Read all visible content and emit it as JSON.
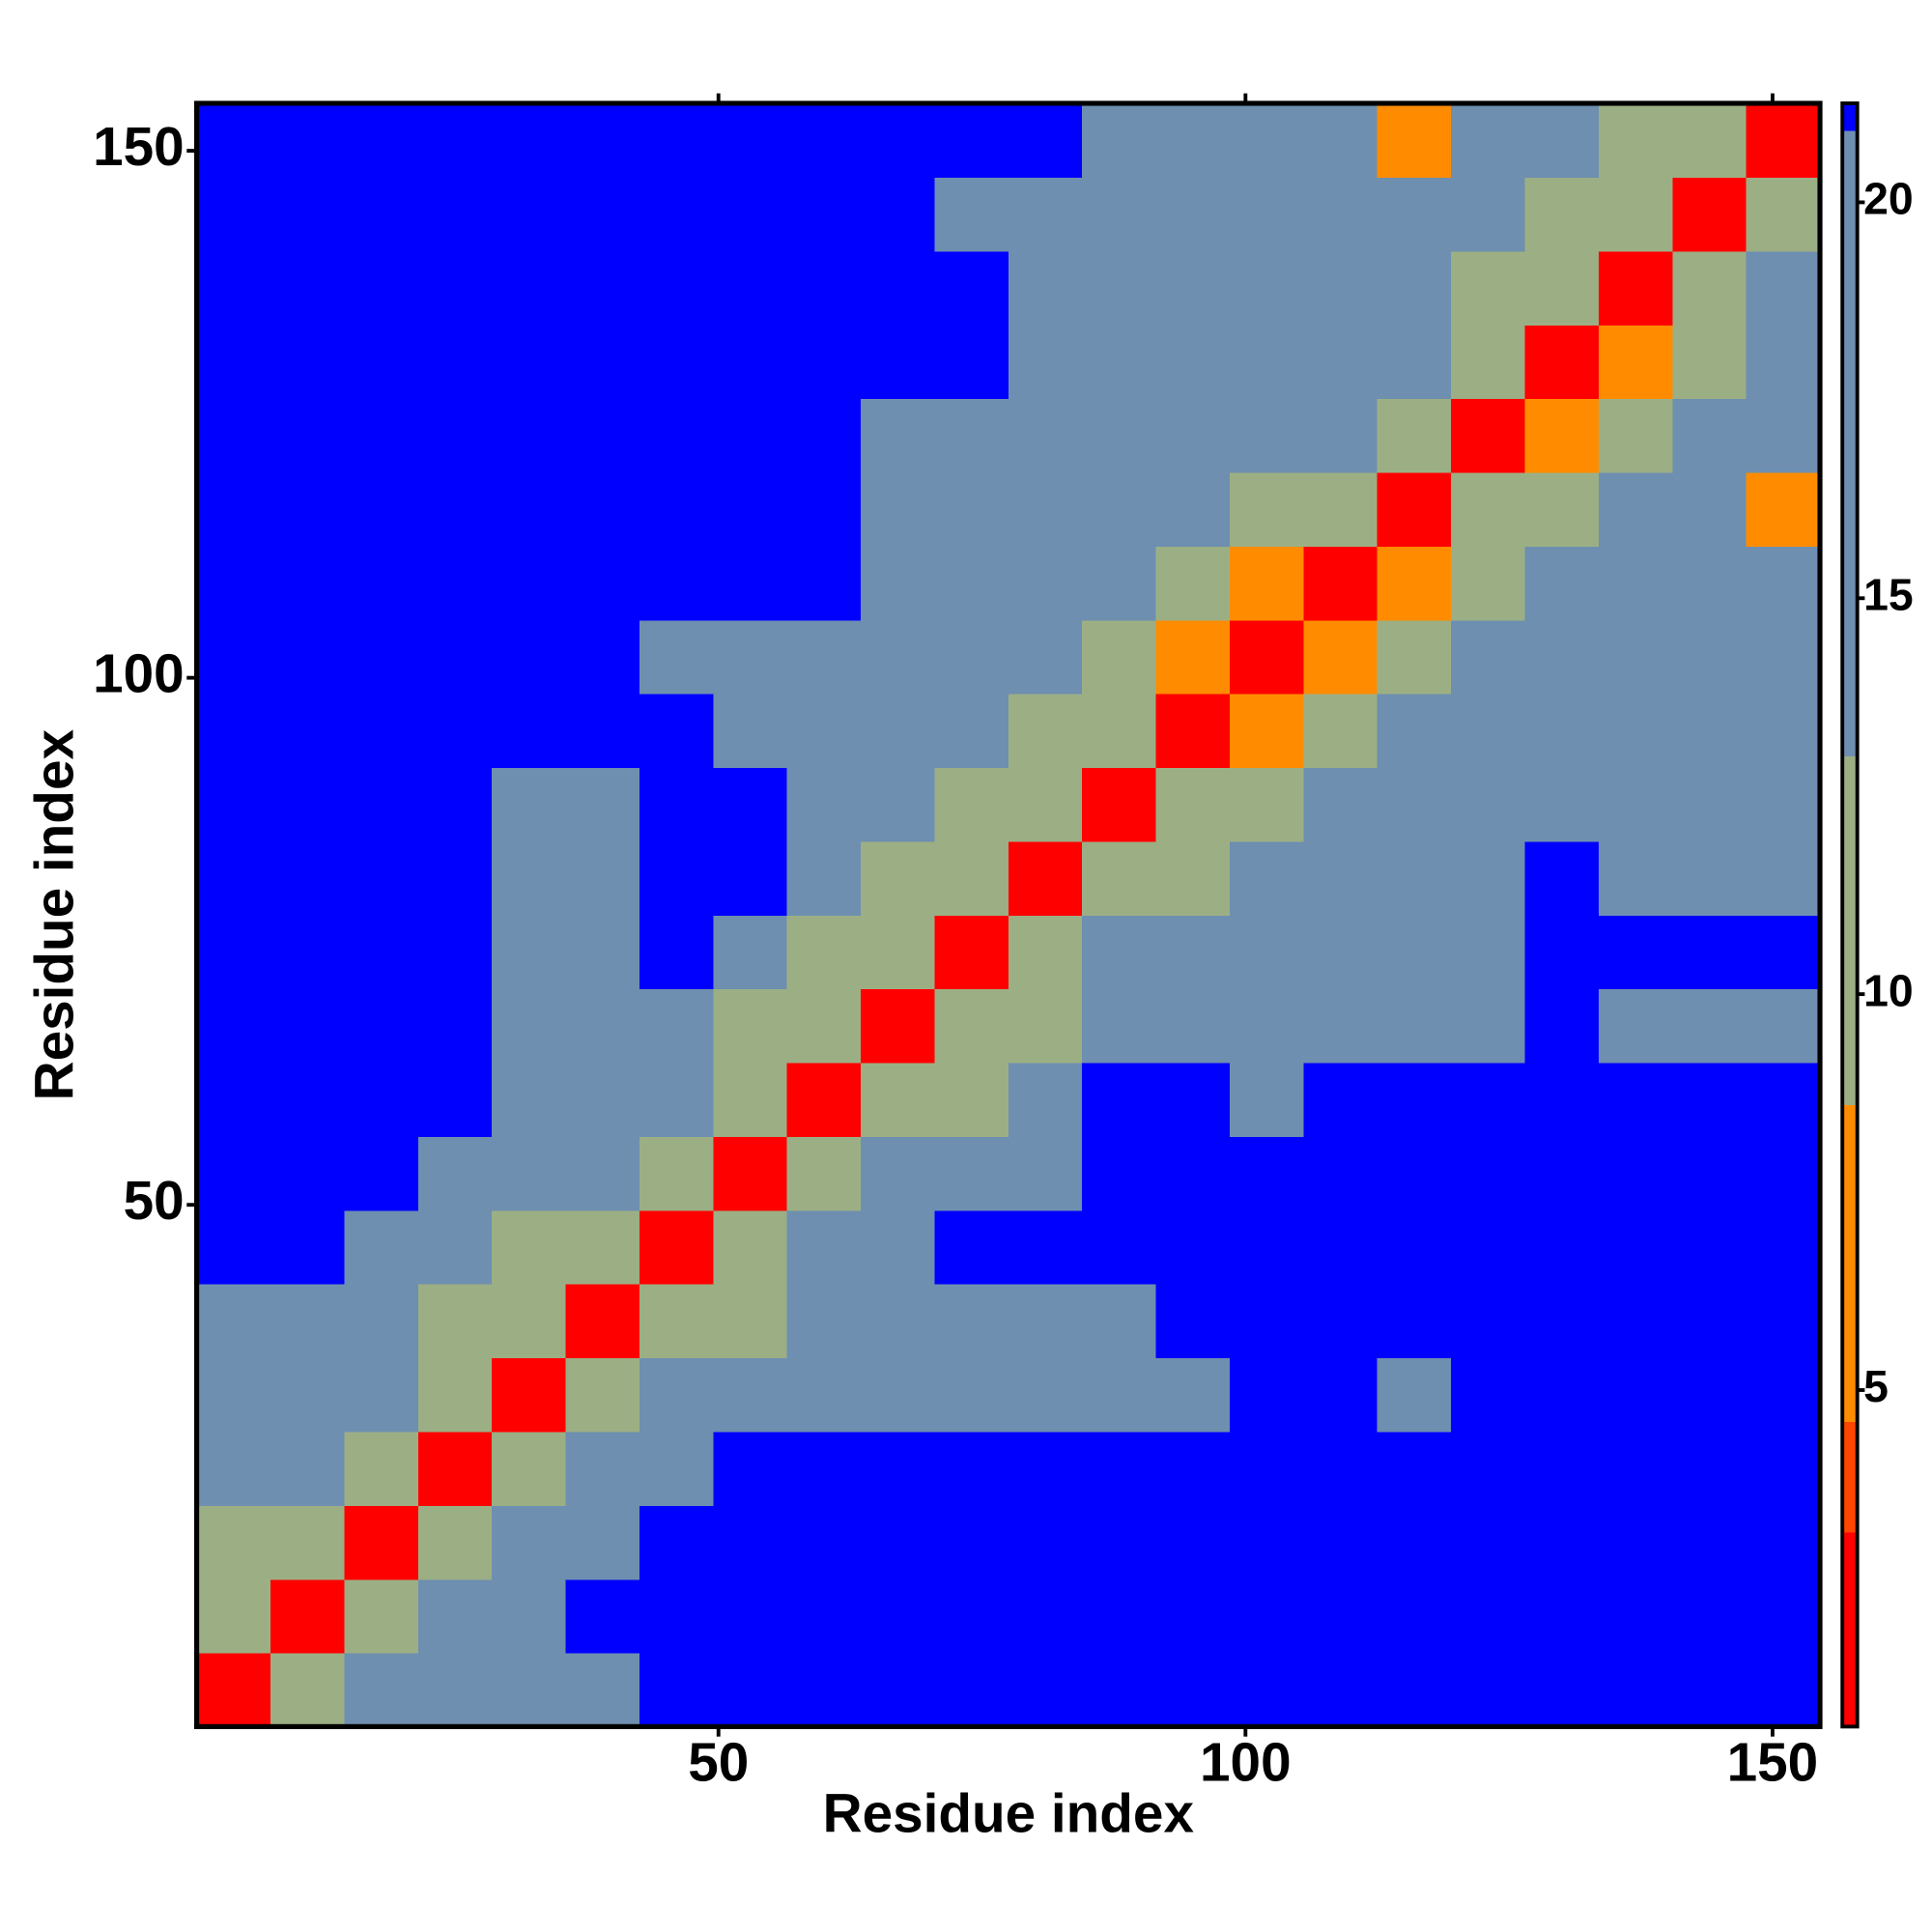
{
  "chart_data": {
    "type": "heatmap",
    "x_label": "Residue index",
    "y_label": "Residue index",
    "xlim": [
      0.5,
      154.5
    ],
    "ylim": [
      0.5,
      154.5
    ],
    "xticks": [
      50,
      100,
      150
    ],
    "yticks": [
      50,
      100,
      150
    ],
    "x_edges": [
      0.5,
      7.5,
      14.5,
      21.5,
      28.5,
      35.5,
      42.5,
      49.5,
      56.5,
      63.5,
      70.5,
      77.5,
      84.5,
      91.5,
      98.5,
      105.5,
      112.5,
      119.5,
      126.5,
      133.5,
      140.5,
      147.5,
      154.5
    ],
    "y_edges": [
      0.5,
      7.5,
      14.5,
      21.5,
      28.5,
      35.5,
      42.5,
      49.5,
      56.5,
      63.5,
      70.5,
      77.5,
      84.5,
      91.5,
      98.5,
      105.5,
      112.5,
      119.5,
      126.5,
      133.5,
      140.5,
      147.5,
      154.5
    ],
    "values": [
      [
        3,
        10,
        14,
        18,
        19,
        20,
        21,
        21,
        21,
        21,
        21,
        21,
        21,
        21,
        21,
        21,
        21,
        21,
        21,
        21,
        21,
        21
      ],
      [
        10,
        3,
        10,
        14,
        18,
        21,
        21,
        21,
        21,
        21,
        21,
        21,
        21,
        21,
        21,
        21,
        21,
        21,
        21,
        21,
        21,
        21
      ],
      [
        12,
        10,
        3,
        10,
        14,
        18,
        21,
        21,
        21,
        21,
        21,
        21,
        21,
        21,
        21,
        21,
        21,
        21,
        21,
        21,
        21,
        21
      ],
      [
        14,
        14,
        10,
        3,
        10,
        14,
        19,
        21,
        21,
        21,
        21,
        21,
        21,
        21,
        21,
        21,
        21,
        21,
        21,
        21,
        21,
        21
      ],
      [
        16,
        17,
        14,
        10,
        3,
        9,
        14,
        17,
        19,
        17,
        17,
        18,
        18,
        19,
        21,
        21,
        20,
        21,
        21,
        21,
        21,
        21
      ],
      [
        18,
        16,
        16,
        13,
        9,
        3,
        9,
        13,
        17,
        17,
        17,
        18,
        18,
        21,
        21,
        21,
        21,
        21,
        21,
        21,
        21,
        21
      ],
      [
        21,
        21,
        19,
        17,
        13,
        9,
        3,
        10,
        14,
        19,
        21,
        21,
        21,
        21,
        21,
        21,
        21,
        21,
        21,
        21,
        21,
        21
      ],
      [
        21,
        21,
        21,
        20,
        15,
        14,
        10,
        3,
        10,
        14,
        17,
        20,
        21,
        21,
        21,
        21,
        21,
        21,
        21,
        21,
        21,
        21
      ],
      [
        21,
        21,
        21,
        21,
        17,
        17,
        14,
        10,
        3,
        9,
        13,
        18,
        21,
        21,
        20,
        21,
        21,
        21,
        21,
        21,
        21,
        21
      ],
      [
        21,
        21,
        21,
        21,
        17,
        18,
        17,
        13,
        9,
        3,
        9,
        13,
        16,
        18,
        17,
        17,
        18,
        18,
        21,
        19,
        19,
        19
      ],
      [
        21,
        21,
        21,
        21,
        16,
        17,
        21,
        17,
        13,
        9,
        3,
        9,
        14,
        16,
        17,
        18,
        18,
        19,
        21,
        21,
        21,
        21
      ],
      [
        21,
        21,
        21,
        21,
        18,
        19,
        21,
        21,
        16,
        13,
        9,
        3,
        9,
        13,
        16,
        17,
        19,
        18,
        21,
        18,
        19,
        18
      ],
      [
        21,
        21,
        21,
        21,
        19,
        19,
        21,
        21,
        18,
        14,
        13,
        9,
        3,
        9,
        12,
        15,
        17,
        17,
        18,
        17,
        19,
        19
      ],
      [
        21,
        21,
        21,
        21,
        21,
        21,
        21,
        20,
        17,
        17,
        15,
        13,
        9,
        3,
        8,
        12,
        15,
        16,
        17,
        17,
        17,
        16
      ],
      [
        21,
        21,
        21,
        21,
        21,
        21,
        20,
        19,
        18,
        17,
        17,
        16,
        12,
        8,
        3,
        8,
        12,
        15,
        17,
        16,
        16,
        16
      ],
      [
        21,
        21,
        21,
        21,
        21,
        21,
        21,
        21,
        21,
        18,
        17,
        17,
        15,
        12,
        8,
        3,
        8,
        12,
        16,
        17,
        18,
        18
      ],
      [
        21,
        21,
        21,
        21,
        21,
        21,
        21,
        21,
        21,
        18,
        17,
        18,
        17,
        15,
        13,
        9,
        3,
        9,
        12,
        15,
        14,
        7
      ],
      [
        21,
        21,
        21,
        21,
        21,
        21,
        21,
        21,
        21,
        19,
        17,
        17,
        18,
        16,
        15,
        14,
        9,
        3,
        8,
        12,
        15,
        16
      ],
      [
        21,
        21,
        21,
        21,
        21,
        21,
        21,
        21,
        21,
        21,
        21,
        19,
        17,
        16,
        17,
        16,
        14,
        10,
        3,
        8,
        13,
        17
      ],
      [
        21,
        21,
        21,
        21,
        21,
        21,
        21,
        21,
        21,
        21,
        21,
        18,
        16,
        15,
        16,
        16,
        15,
        13,
        9,
        3,
        9,
        14
      ],
      [
        21,
        21,
        21,
        21,
        21,
        21,
        21,
        21,
        21,
        21,
        20,
        19,
        18,
        18,
        17,
        18,
        16,
        15,
        12,
        9,
        3,
        9
      ],
      [
        21,
        21,
        21,
        21,
        21,
        21,
        21,
        21,
        21,
        21,
        21,
        21,
        19,
        18,
        16,
        17,
        8,
        16,
        15,
        13,
        9,
        3
      ]
    ],
    "colorscale": [
      {
        "max": 3.2,
        "color": "#ff0000"
      },
      {
        "max": 4.6,
        "color": "#ff4500"
      },
      {
        "max": 8.6,
        "color": "#ff8c00"
      },
      {
        "max": 13,
        "color": "#9caf84"
      },
      {
        "max": 20.9,
        "color": "#6e8fb0"
      },
      {
        "max": 21.25,
        "color": "#0000ff"
      }
    ],
    "colorbar_lim": [
      0.75,
      21.25
    ],
    "colorbar_ticks": [
      5,
      10,
      15,
      20
    ]
  }
}
